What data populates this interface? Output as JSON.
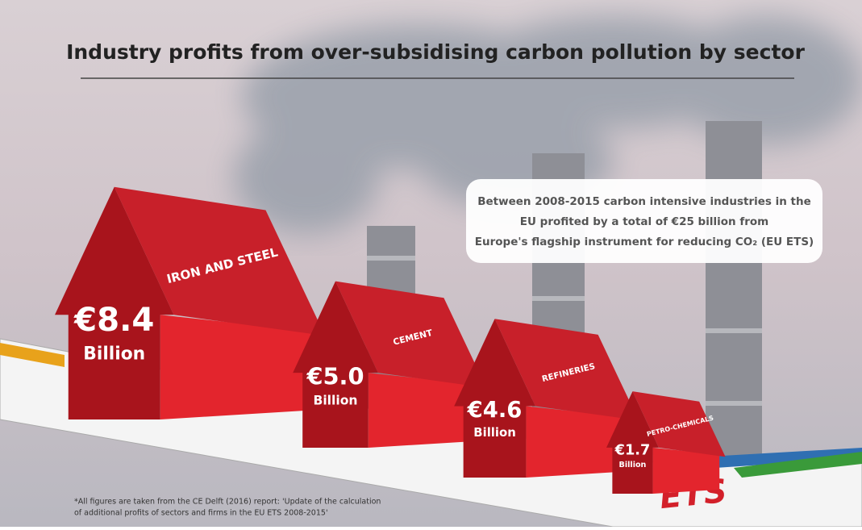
{
  "chart_data": {
    "type": "house",
    "title": "Industry profits from over-subsidising carbon pollution by sector",
    "categories": [
      "IRON AND STEEL",
      "CEMENT",
      "REFINERIES",
      "PETRO-CHEMICALS"
    ],
    "values": [
      8.4,
      5.0,
      4.6,
      1.7
    ],
    "value_labels": [
      "€8.4",
      "€5.0",
      "€4.6",
      "€1.7"
    ],
    "unit_label": "Billion",
    "color": "#c8202a",
    "annotation": [
      "Between 2008-2015 carbon intensive industries in the",
      "EU profited by a total of €25 billion from",
      "Europe's flagship instrument for reducing CO₂ (EU ETS)"
    ],
    "footnote": [
      "*All figures are taken from the CE Delft (2016) report: 'Update of the calculation",
      "of additional profits of sectors and firms in the EU ETS 2008-2015'"
    ],
    "board_label": "ETS"
  }
}
